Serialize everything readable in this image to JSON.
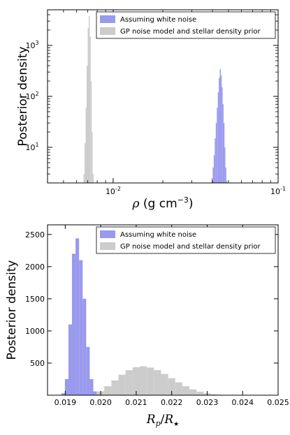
{
  "chart_data": [
    {
      "type": "histogram",
      "yscale": "log",
      "xscale": "log",
      "xlim": [
        0.004,
        0.1
      ],
      "ylim": [
        2,
        5000
      ],
      "xticks": [
        {
          "value": 0.01,
          "base": "10",
          "exp": "-2"
        },
        {
          "value": 0.1,
          "base": "10",
          "exp": "-1"
        }
      ],
      "yticks": [
        {
          "value": 10,
          "base": "10",
          "exp": "1"
        },
        {
          "value": 100,
          "base": "10",
          "exp": "2"
        },
        {
          "value": 1000,
          "base": "10",
          "exp": "3"
        }
      ],
      "xlabel": {
        "symbol": "ρ",
        "text": " (g cm",
        "exp": "−3",
        "close": ")"
      },
      "ylabel": "Posterior density",
      "legend_position": "top-right",
      "series": [
        {
          "name": "Assuming white noise",
          "color": "#9999ee",
          "bins": [
            {
              "x": 0.0398,
              "y": 2.5
            },
            {
              "x": 0.0404,
              "y": 4
            },
            {
              "x": 0.041,
              "y": 7
            },
            {
              "x": 0.0416,
              "y": 15
            },
            {
              "x": 0.0422,
              "y": 30
            },
            {
              "x": 0.0428,
              "y": 60
            },
            {
              "x": 0.0434,
              "y": 120
            },
            {
              "x": 0.044,
              "y": 230
            },
            {
              "x": 0.0446,
              "y": 340
            },
            {
              "x": 0.0452,
              "y": 260
            },
            {
              "x": 0.0458,
              "y": 150
            },
            {
              "x": 0.0464,
              "y": 70
            },
            {
              "x": 0.047,
              "y": 30
            },
            {
              "x": 0.0476,
              "y": 10
            },
            {
              "x": 0.0482,
              "y": 4
            },
            {
              "x": 0.0488,
              "y": 2.2
            }
          ]
        },
        {
          "name": "GP noise model and stellar density prior",
          "color": "#cccccc",
          "bins": [
            {
              "x": 0.00666,
              "y": 3
            },
            {
              "x": 0.00676,
              "y": 12
            },
            {
              "x": 0.00686,
              "y": 60
            },
            {
              "x": 0.00696,
              "y": 400
            },
            {
              "x": 0.00706,
              "y": 2200
            },
            {
              "x": 0.00716,
              "y": 3800
            },
            {
              "x": 0.00726,
              "y": 1500
            },
            {
              "x": 0.00736,
              "y": 200
            },
            {
              "x": 0.00746,
              "y": 20
            },
            {
              "x": 0.00756,
              "y": 3
            }
          ]
        }
      ]
    },
    {
      "type": "histogram",
      "xlim": [
        0.0185,
        0.025
      ],
      "ylim": [
        0,
        2650
      ],
      "xticks": [
        0.019,
        0.02,
        0.021,
        0.022,
        0.023,
        0.024,
        0.025
      ],
      "xtick_labels": [
        "0.019",
        "0.020",
        "0.021",
        "0.022",
        "0.023",
        "0.024",
        "0.025"
      ],
      "yticks": [
        500,
        1000,
        1500,
        2000,
        2500
      ],
      "ytick_labels": [
        "500",
        "1000",
        "1500",
        "2000",
        "2500"
      ],
      "xlabel": {
        "R": "R",
        "p": "p",
        "slash": "/",
        "R2": "R",
        "star": "★"
      },
      "ylabel": "Posterior density",
      "legend_position": "top-right",
      "series": [
        {
          "name": "Assuming white noise",
          "color": "#9999ee",
          "bins": [
            {
              "x": 0.01894,
              "y": 30
            },
            {
              "x": 0.01904,
              "y": 250
            },
            {
              "x": 0.01914,
              "y": 1100
            },
            {
              "x": 0.01924,
              "y": 2200
            },
            {
              "x": 0.01934,
              "y": 2440
            },
            {
              "x": 0.01944,
              "y": 2100
            },
            {
              "x": 0.01954,
              "y": 1500
            },
            {
              "x": 0.01964,
              "y": 750
            },
            {
              "x": 0.01974,
              "y": 250
            },
            {
              "x": 0.01984,
              "y": 60
            },
            {
              "x": 0.01994,
              "y": 10
            }
          ]
        },
        {
          "name": "GP noise model and stellar density prior",
          "color": "#cccccc",
          "bins": [
            {
              "x": 0.0196,
              "y": 2
            },
            {
              "x": 0.0198,
              "y": 20
            },
            {
              "x": 0.02,
              "y": 60
            },
            {
              "x": 0.0202,
              "y": 140
            },
            {
              "x": 0.0204,
              "y": 230
            },
            {
              "x": 0.0206,
              "y": 320
            },
            {
              "x": 0.0208,
              "y": 390
            },
            {
              "x": 0.021,
              "y": 435
            },
            {
              "x": 0.0212,
              "y": 450
            },
            {
              "x": 0.0214,
              "y": 430
            },
            {
              "x": 0.0216,
              "y": 390
            },
            {
              "x": 0.0218,
              "y": 330
            },
            {
              "x": 0.022,
              "y": 265
            },
            {
              "x": 0.0222,
              "y": 200
            },
            {
              "x": 0.0224,
              "y": 140
            },
            {
              "x": 0.0226,
              "y": 90
            },
            {
              "x": 0.0228,
              "y": 55
            },
            {
              "x": 0.023,
              "y": 30
            },
            {
              "x": 0.0232,
              "y": 15
            },
            {
              "x": 0.0234,
              "y": 7
            },
            {
              "x": 0.0236,
              "y": 3
            },
            {
              "x": 0.0238,
              "y": 1
            }
          ]
        }
      ]
    }
  ]
}
